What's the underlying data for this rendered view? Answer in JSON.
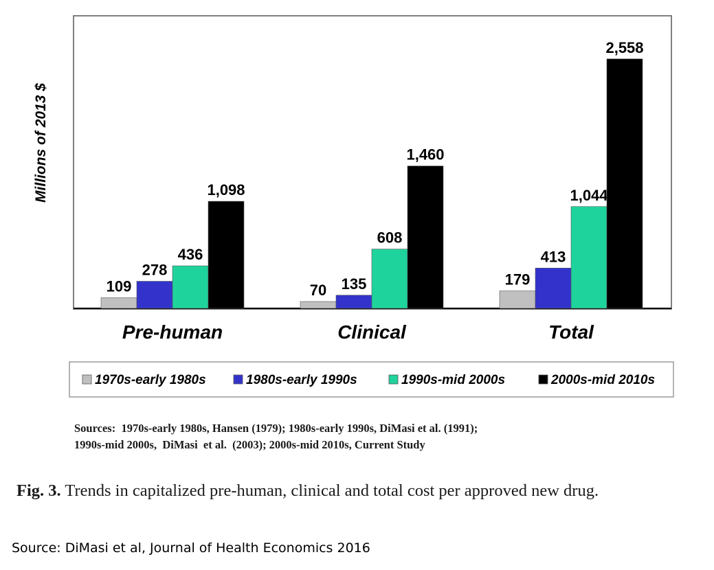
{
  "chart_data": {
    "type": "bar",
    "ylabel": "Millions of 2013 $",
    "categories": [
      "Pre-human",
      "Clinical",
      "Total"
    ],
    "series": [
      {
        "name": "1970s-early 1980s",
        "color": "#c0c0c0",
        "values": [
          109,
          70,
          179
        ]
      },
      {
        "name": "1980s-early 1990s",
        "color": "#3333cc",
        "values": [
          278,
          135,
          413
        ]
      },
      {
        "name": "1990s-mid 2000s",
        "color": "#1fd39c",
        "values": [
          436,
          608,
          1044
        ]
      },
      {
        "name": "2000s-mid 2010s",
        "color": "#000000",
        "values": [
          1098,
          1460,
          2558
        ]
      }
    ],
    "data_labels": [
      [
        "109",
        "278",
        "436",
        "1,098"
      ],
      [
        "70",
        "135",
        "608",
        "1,460"
      ],
      [
        "179",
        "413",
        "1,044",
        "2,558"
      ]
    ],
    "ylim": [
      0,
      3000
    ],
    "grid": false,
    "legend": "bottom"
  },
  "sources": {
    "line1": "Sources:  1970s-early 1980s, Hansen (1979); 1980s-early 1990s, DiMasi et al. (1991);",
    "line2": "1990s-mid 2000s,  DiMasi  et al.  (2003); 2000s-mid 2010s, Current Study"
  },
  "caption": {
    "label": "Fig. 3.",
    "text": "Trends in capitalized pre-human, clinical and total cost per approved new drug."
  },
  "source_note": "Source: DiMasi et al, Journal of Health Economics 2016"
}
